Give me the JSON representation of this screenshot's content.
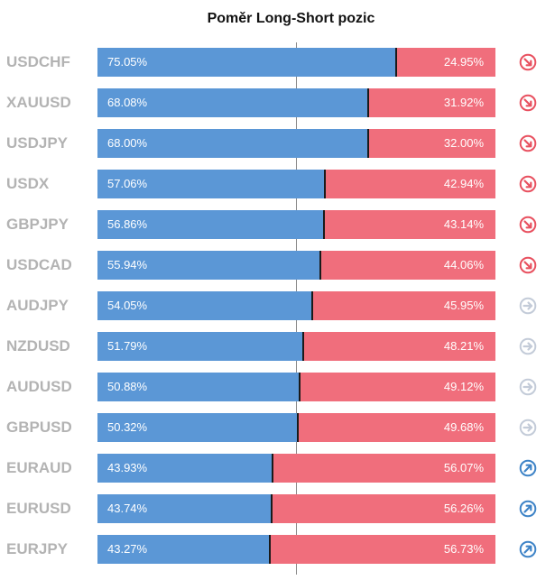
{
  "title": "Poměr Long-Short pozic",
  "colors": {
    "long": "#5b97d6",
    "short": "#f06e7c",
    "down": "#e8505f",
    "neutral": "#c3cbd8",
    "up": "#3d83c7"
  },
  "chart_data": {
    "type": "bar",
    "stacked": true,
    "orientation": "horizontal",
    "title": "Poměr Long-Short pozic",
    "categories": [
      "USDCHF",
      "XAUUSD",
      "USDJPY",
      "USDX",
      "GBPJPY",
      "USDCAD",
      "AUDJPY",
      "NZDUSD",
      "AUDUSD",
      "GBPUSD",
      "EURAUD",
      "EURUSD",
      "EURJPY"
    ],
    "series": [
      {
        "values": [
          75.05,
          68.08,
          68.0,
          57.06,
          56.86,
          55.94,
          54.05,
          51.79,
          50.88,
          50.32,
          43.93,
          43.74,
          43.27
        ]
      },
      {
        "values": [
          24.95,
          31.92,
          32.0,
          42.94,
          43.14,
          44.06,
          45.95,
          48.21,
          49.12,
          49.68,
          56.07,
          56.26,
          56.73
        ]
      }
    ],
    "long_labels": [
      "75.05%",
      "68.08%",
      "68.00%",
      "57.06%",
      "56.86%",
      "55.94%",
      "54.05%",
      "51.79%",
      "50.88%",
      "50.32%",
      "43.93%",
      "43.74%",
      "43.27%"
    ],
    "short_labels": [
      "24.95%",
      "31.92%",
      "32.00%",
      "42.94%",
      "43.14%",
      "44.06%",
      "45.95%",
      "48.21%",
      "49.12%",
      "49.68%",
      "56.07%",
      "56.26%",
      "56.73%"
    ],
    "signals": [
      "down-right-arrow-icon",
      "down-right-arrow-icon",
      "down-right-arrow-icon",
      "down-right-arrow-icon",
      "down-right-arrow-icon",
      "down-right-arrow-icon",
      "right-arrow-icon",
      "right-arrow-icon",
      "right-arrow-icon",
      "right-arrow-icon",
      "up-right-arrow-icon",
      "up-right-arrow-icon",
      "up-right-arrow-icon"
    ],
    "xlim": [
      0,
      100
    ]
  }
}
